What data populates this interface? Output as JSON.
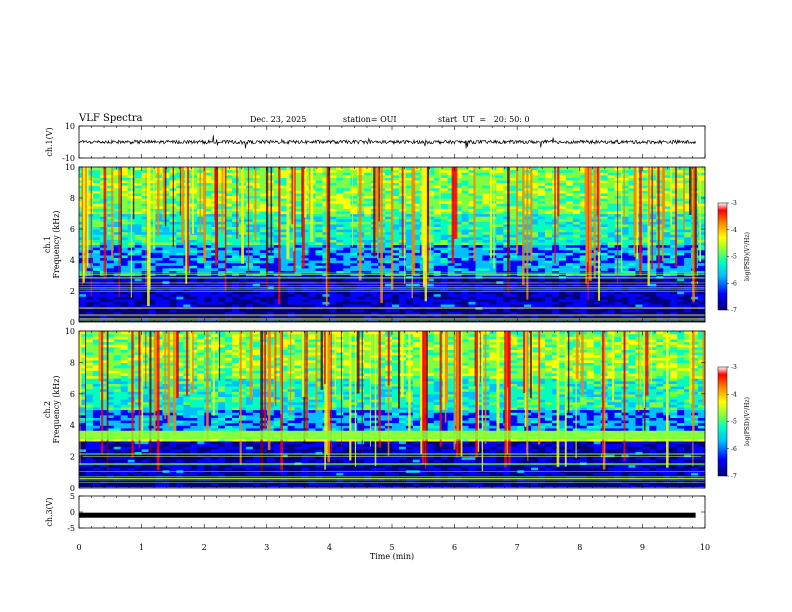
{
  "header": {
    "title": "VLF Spectra",
    "date": "Dec. 23, 2025",
    "station": "station= OUI",
    "start": "start  UT  =   20: 50: 0"
  },
  "chart_data": [
    {
      "type": "line",
      "name": "ch1-waveform",
      "ylabel": "ch.1(V)",
      "ylim": [
        -10,
        10
      ],
      "yticks": [
        "10",
        "-10"
      ],
      "xlim": [
        0,
        10
      ],
      "trace_level": 0
    },
    {
      "type": "heatmap",
      "name": "ch1-spectrogram",
      "ylabel": "ch.1",
      "ylabel2": "Frequency  (kHz)",
      "ylim": [
        0,
        10
      ],
      "yticks": [
        "0",
        "2",
        "4",
        "6",
        "8",
        "10"
      ],
      "xlim": [
        0,
        10
      ],
      "colorbar": {
        "label": "log(PSD)(V²/Hz)",
        "ticks": [
          "-3",
          "-4",
          "-5",
          "-6",
          "-7"
        ],
        "range": [
          -7,
          -3
        ]
      }
    },
    {
      "type": "heatmap",
      "name": "ch2-spectrogram",
      "ylabel": "ch.2",
      "ylabel2": "Frequency  (kHz)",
      "ylim": [
        0,
        10
      ],
      "yticks": [
        "0",
        "2",
        "4",
        "6",
        "8",
        "10"
      ],
      "xlim": [
        0,
        10
      ],
      "colorbar": {
        "label": "log(PSD)(V²/Hz)",
        "ticks": [
          "-3",
          "-4",
          "-5",
          "-6",
          "-7"
        ],
        "range": [
          -7,
          -3
        ]
      }
    },
    {
      "type": "line",
      "name": "ch3-waveform",
      "ylabel": "ch.3(V)",
      "ylim": [
        -5,
        5
      ],
      "yticks": [
        "5",
        "0",
        "-5"
      ],
      "xlim": [
        0,
        10
      ],
      "trace_level": -1
    }
  ],
  "xaxis": {
    "label": "Time  (min)",
    "ticks": [
      "0",
      "1",
      "2",
      "3",
      "4",
      "5",
      "6",
      "7",
      "8",
      "9",
      "10"
    ]
  },
  "colors": {
    "colormap": [
      "#00007f",
      "#0000ff",
      "#00bfff",
      "#00ffbf",
      "#7fff3f",
      "#ffff00",
      "#ff7f00",
      "#ff0000",
      "#7f0000"
    ]
  }
}
